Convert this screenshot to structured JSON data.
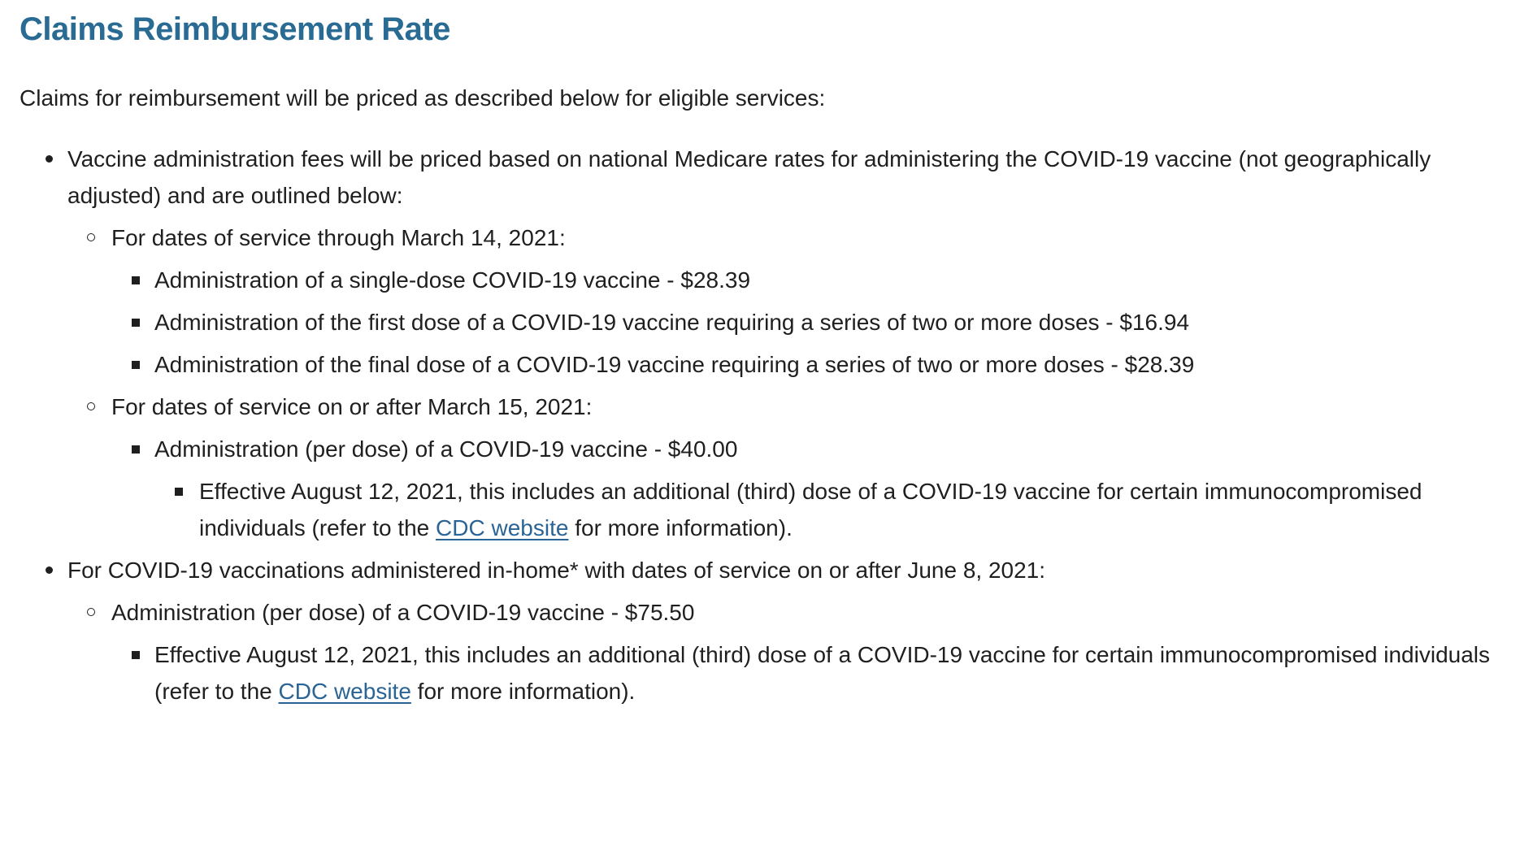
{
  "page": {
    "title": "Claims Reimbursement Rate",
    "intro": "Claims for reimbursement will be priced as described below for eligible services:"
  },
  "colors": {
    "heading": "#2a6b94",
    "link": "#2a6496",
    "body_text": "#1f1f1f",
    "background": "#ffffff"
  },
  "list": {
    "vaccine_fees": {
      "text": "Vaccine administration fees will be priced based on national Medicare rates for administering the COVID-19 vaccine (not geographically adjusted) and are outlined below:",
      "through_march14": {
        "text": "For dates of service through March 14, 2021:",
        "items": [
          "Administration of a single-dose COVID-19 vaccine - $28.39",
          "Administration of the first dose of a COVID-19 vaccine requiring a series of two or more doses - $16.94",
          "Administration of the final dose of a COVID-19 vaccine requiring a series of two or more doses - $28.39"
        ]
      },
      "after_march15": {
        "text": "For dates of service on or after March 15, 2021:",
        "per_dose": "Administration (per dose) of a COVID-19 vaccine - $40.00",
        "effective_note": {
          "prefix": "Effective August 12, 2021, this includes an additional (third) dose of a COVID-19 vaccine for certain immunocompromised individuals (refer to the ",
          "link_text": "CDC website",
          "suffix": " for more information)."
        }
      }
    },
    "in_home": {
      "text": "For COVID-19 vaccinations administered in-home* with dates of service on or after June 8, 2021:",
      "per_dose": "Administration (per dose) of a COVID-19 vaccine - $75.50",
      "effective_note": {
        "prefix": "Effective August 12, 2021, this includes an additional (third) dose of a COVID-19 vaccine for certain immunocompromised individuals (refer to the ",
        "link_text": "CDC website",
        "suffix": " for more information)."
      }
    }
  }
}
